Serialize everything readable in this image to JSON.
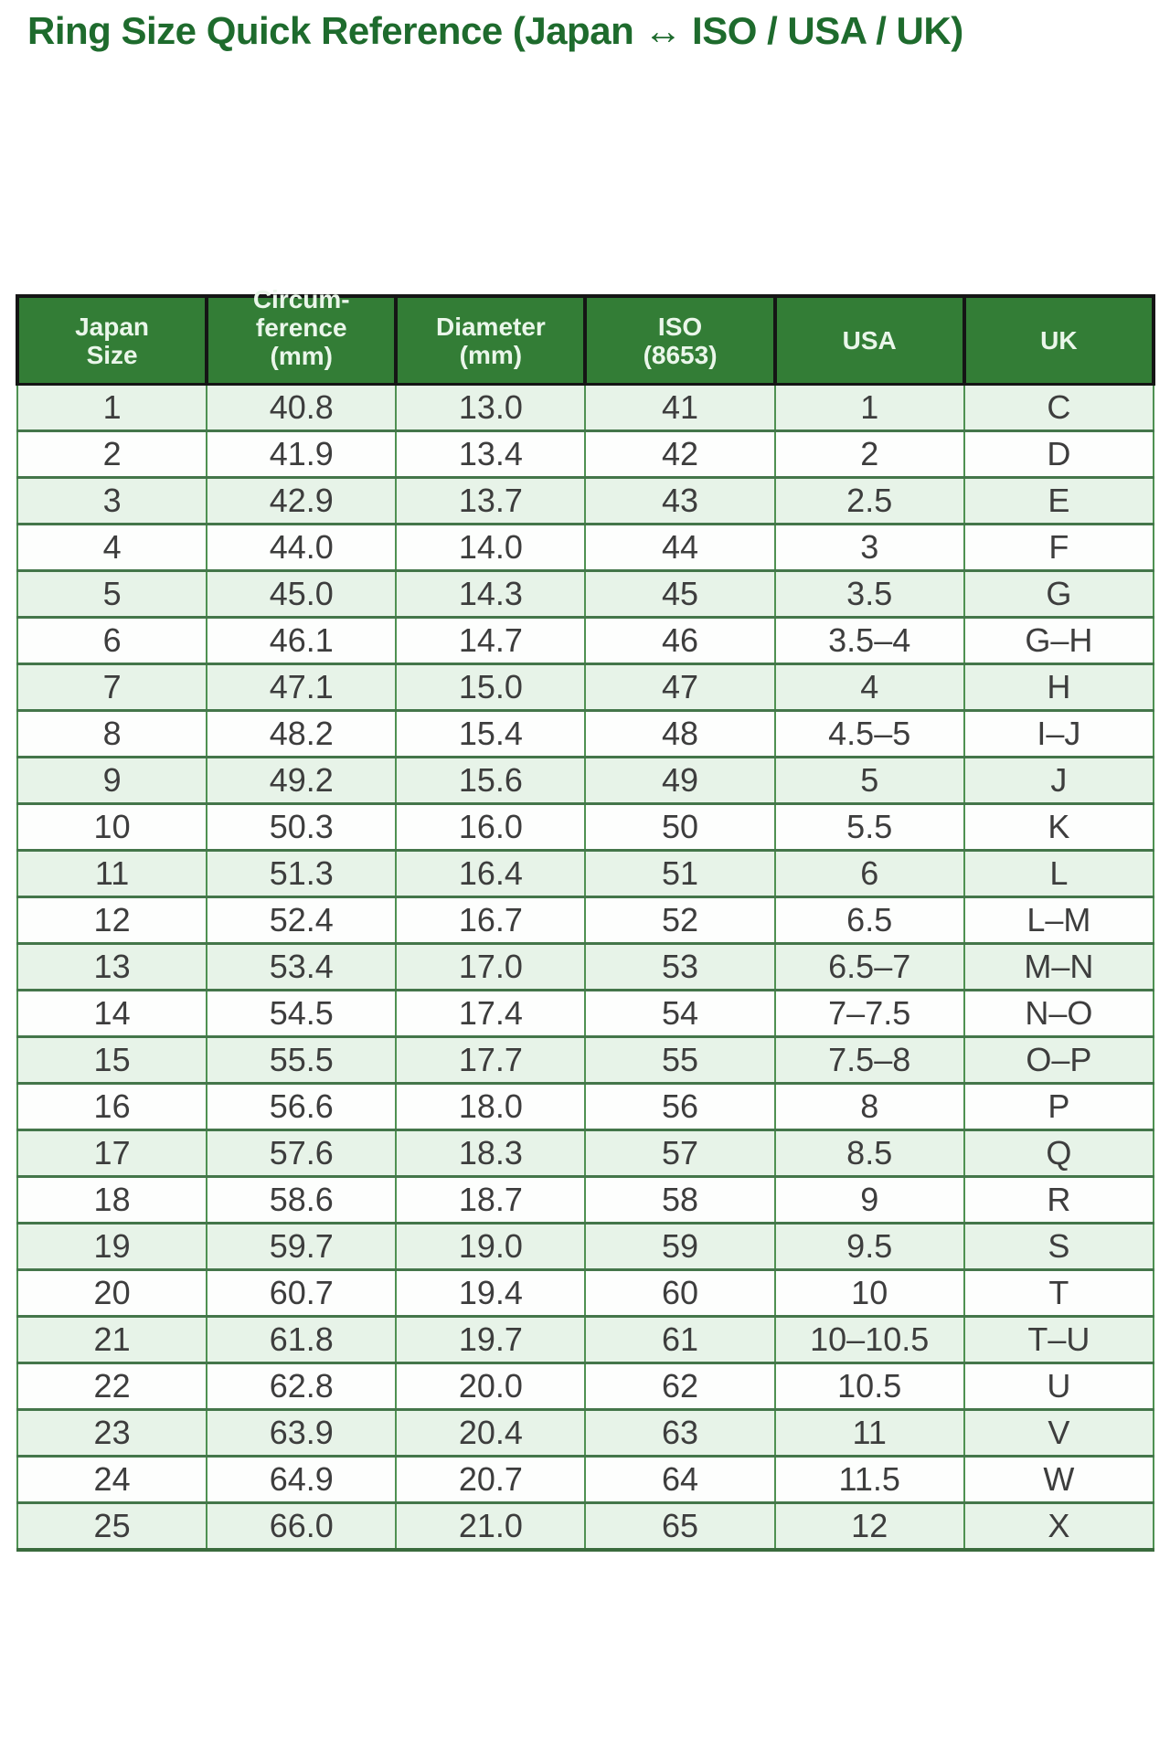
{
  "page": {
    "title": "Ring Size Quick Reference (Japan ↔ ISO / USA / UK)"
  },
  "chart_data": {
    "type": "table",
    "title": "Ring Size Quick Reference (Japan ↔ ISO / USA / UK)",
    "columns": [
      "Japan Size",
      "Circumference (mm)",
      "Diameter (mm)",
      "ISO (8653)",
      "USA",
      "UK"
    ],
    "column_display": [
      "Japan\nSize",
      "Circum-\nference\n(mm)",
      "Diameter\n(mm)",
      "ISO\n(8653)",
      "USA",
      "UK"
    ],
    "rows": [
      [
        "1",
        "40.8",
        "13.0",
        "41",
        "1",
        "C"
      ],
      [
        "2",
        "41.9",
        "13.4",
        "42",
        "2",
        "D"
      ],
      [
        "3",
        "42.9",
        "13.7",
        "43",
        "2.5",
        "E"
      ],
      [
        "4",
        "44.0",
        "14.0",
        "44",
        "3",
        "F"
      ],
      [
        "5",
        "45.0",
        "14.3",
        "45",
        "3.5",
        "G"
      ],
      [
        "6",
        "46.1",
        "14.7",
        "46",
        "3.5–4",
        "G–H"
      ],
      [
        "7",
        "47.1",
        "15.0",
        "47",
        "4",
        "H"
      ],
      [
        "8",
        "48.2",
        "15.4",
        "48",
        "4.5–5",
        "I–J"
      ],
      [
        "9",
        "49.2",
        "15.6",
        "49",
        "5",
        "J"
      ],
      [
        "10",
        "50.3",
        "16.0",
        "50",
        "5.5",
        "K"
      ],
      [
        "11",
        "51.3",
        "16.4",
        "51",
        "6",
        "L"
      ],
      [
        "12",
        "52.4",
        "16.7",
        "52",
        "6.5",
        "L–M"
      ],
      [
        "13",
        "53.4",
        "17.0",
        "53",
        "6.5–7",
        "M–N"
      ],
      [
        "14",
        "54.5",
        "17.4",
        "54",
        "7–7.5",
        "N–O"
      ],
      [
        "15",
        "55.5",
        "17.7",
        "55",
        "7.5–8",
        "O–P"
      ],
      [
        "16",
        "56.6",
        "18.0",
        "56",
        "8",
        "P"
      ],
      [
        "17",
        "57.6",
        "18.3",
        "57",
        "8.5",
        "Q"
      ],
      [
        "18",
        "58.6",
        "18.7",
        "58",
        "9",
        "R"
      ],
      [
        "19",
        "59.7",
        "19.0",
        "59",
        "9.5",
        "S"
      ],
      [
        "20",
        "60.7",
        "19.4",
        "60",
        "10",
        "T"
      ],
      [
        "21",
        "61.8",
        "19.7",
        "61",
        "10–10.5",
        "T–U"
      ],
      [
        "22",
        "62.8",
        "20.0",
        "62",
        "10.5",
        "U"
      ],
      [
        "23",
        "63.9",
        "20.4",
        "63",
        "11",
        "V"
      ],
      [
        "24",
        "64.9",
        "20.7",
        "64",
        "11.5",
        "W"
      ],
      [
        "25",
        "66.0",
        "21.0",
        "65",
        "12",
        "X"
      ]
    ]
  },
  "colors": {
    "title": "#1e6b2d",
    "header-bg": "#337d36",
    "header-text": "#eaf6ea",
    "header-border": "#151515",
    "row-alt": "#e7f3e8",
    "row-white": "#fdfefd",
    "body-text": "#3d3d3d",
    "grid-v": "#4f9152",
    "grid-h": "#44764a",
    "table-bottom": "#3a6b3d"
  }
}
